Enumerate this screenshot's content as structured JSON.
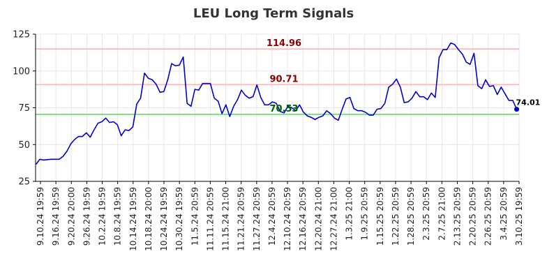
{
  "chart_data": {
    "type": "line",
    "title": "LEU Long Term Signals",
    "xlabel": "",
    "ylabel": "",
    "ylim": [
      25,
      125
    ],
    "yticks": [
      25,
      50,
      75,
      100,
      125
    ],
    "grid": true,
    "colors": {
      "line": "#0000cc",
      "upper": "#ffb3b3",
      "middle": "#ffb3b3",
      "lower": "#66dd66",
      "upper_label": "#8b0000",
      "middle_label": "#8b0000",
      "lower_label": "#006400",
      "grid": "#e6e6e6"
    },
    "x_tick_labels": [
      "9.10.24 19:59",
      "9.16.24 19:59",
      "9.20.24 20:00",
      "9.26.24 19:59",
      "10.2.24 19:59",
      "10.8.24 19:59",
      "10.14.24 19:59",
      "10.18.24 20:00",
      "10.24.24 19:59",
      "10.30.24 19:59",
      "11.5.24 20:59",
      "11.11.24 20:59",
      "11.15.24 21:00",
      "11.21.24 20:59",
      "11.27.24 20:59",
      "12.4.24 20:59",
      "12.10.24 20:59",
      "12.16.24 20:59",
      "12.20.24 21:00",
      "12.27.24 21:00",
      "1.3.25 21:00",
      "1.9.25 20:59",
      "1.15.25 20:59",
      "1.22.25 20:59",
      "1.28.25 20:59",
      "2.3.25 20:59",
      "2.7.25 21:00",
      "2.13.25 20:59",
      "2.20.25 20:59",
      "2.26.25 20:59",
      "3.4.25 20:59",
      "3.10.25 19:59"
    ],
    "levels": [
      {
        "name": "upper",
        "value": 114.96,
        "label": "114.96"
      },
      {
        "name": "middle",
        "value": 90.71,
        "label": "90.71"
      },
      {
        "name": "lower",
        "value": 70.53,
        "label": "70.53"
      }
    ],
    "last": {
      "value": 74.01,
      "label": "74.01"
    },
    "series": [
      {
        "values": [
          36.5,
          40,
          39.5,
          39.8,
          40,
          40,
          40,
          42,
          45.5,
          50.5,
          53.5,
          55.5,
          55.5,
          58,
          55,
          60,
          64.5,
          65.5,
          68,
          65,
          65.5,
          63.5,
          56,
          60,
          59.5,
          62,
          77.5,
          81.5,
          98.5,
          95,
          94,
          91,
          85.5,
          86,
          94,
          105,
          103.5,
          104,
          109.5,
          78,
          76,
          87.5,
          87,
          91.5,
          91.5,
          91.5,
          81.5,
          79.5,
          71,
          77,
          69,
          76,
          80.5,
          87,
          83.5,
          81.5,
          82.5,
          90.5,
          82,
          77,
          77,
          79,
          78,
          72.5,
          71.5,
          76,
          75,
          73,
          77,
          72,
          69.5,
          68.5,
          67,
          68.5,
          69.5,
          73,
          71,
          68,
          66.5,
          74,
          81,
          82,
          74.5,
          73,
          73,
          72,
          70,
          70,
          74,
          74.5,
          78,
          89,
          91,
          94.5,
          89,
          78.5,
          79,
          81.5,
          86,
          82.5,
          82.5,
          80.5,
          85,
          82,
          109,
          114.5,
          114.5,
          119,
          118,
          114.5,
          111.5,
          106,
          104.5,
          112,
          90,
          88,
          94,
          89.5,
          90,
          84,
          89,
          84.5,
          80,
          80,
          74.01
        ]
      }
    ]
  }
}
